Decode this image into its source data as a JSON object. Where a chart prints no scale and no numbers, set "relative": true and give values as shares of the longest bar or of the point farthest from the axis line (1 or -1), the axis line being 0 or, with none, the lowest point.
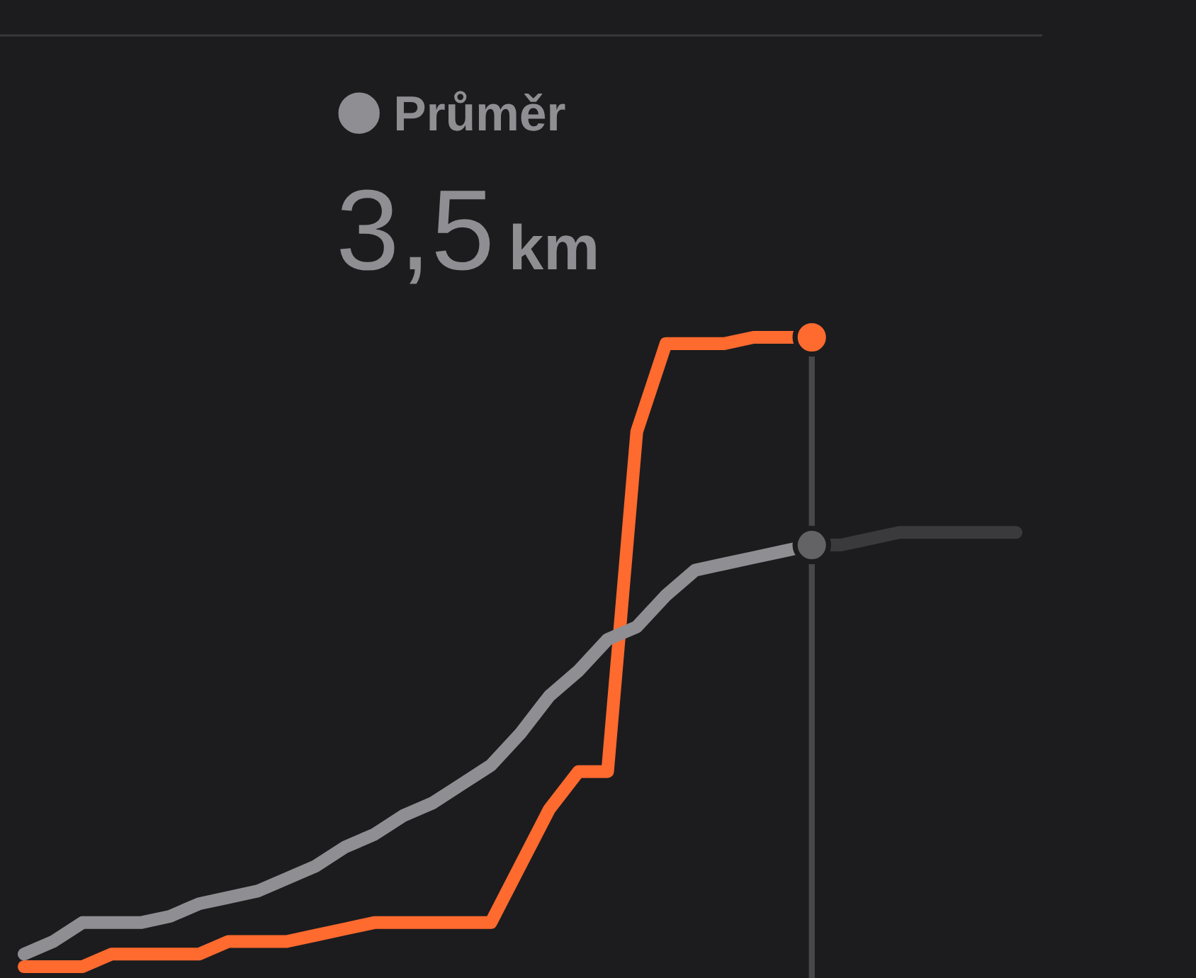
{
  "chart_data": {
    "type": "line",
    "relative": true,
    "categories": [
      null,
      null,
      null,
      null,
      null,
      null,
      null,
      null,
      null,
      null,
      null,
      null,
      null,
      null,
      null,
      null,
      null,
      null,
      null,
      null,
      null,
      null,
      null,
      null,
      null,
      null,
      null,
      null,
      null,
      null,
      null,
      null,
      null,
      null,
      null
    ],
    "series": [
      {
        "color": "#ff6a2f",
        "values": [
          0,
          0,
          0,
          0.02,
          0.02,
          0.02,
          0.02,
          0.04,
          0.04,
          0.04,
          0.05,
          0.06,
          0.07,
          0.07,
          0.07,
          0.07,
          0.07,
          0.16,
          0.25,
          0.31,
          0.31,
          0.85,
          0.99,
          0.99,
          0.99,
          1.0,
          1.0,
          1.0,
          null,
          null,
          null,
          null,
          null,
          null,
          null
        ]
      },
      {
        "name": "Průměr",
        "color": "#8e8e93",
        "values": [
          0.02,
          0.04,
          0.07,
          0.07,
          0.07,
          0.08,
          0.1,
          0.11,
          0.12,
          0.14,
          0.16,
          0.19,
          0.21,
          0.24,
          0.26,
          0.29,
          0.32,
          0.37,
          0.43,
          0.47,
          0.52,
          0.54,
          0.59,
          0.63,
          0.64,
          0.65,
          0.66,
          0.67,
          null,
          null,
          null,
          null,
          null,
          null,
          null
        ]
      },
      {
        "color": "#3a3a3c",
        "values": [
          null,
          null,
          null,
          null,
          null,
          null,
          null,
          null,
          null,
          null,
          null,
          null,
          null,
          null,
          null,
          null,
          null,
          null,
          null,
          null,
          null,
          null,
          null,
          null,
          null,
          null,
          null,
          0.67,
          0.67,
          0.68,
          0.69,
          0.69,
          0.69,
          0.69,
          0.69
        ]
      },
      {
        "marker": "circle",
        "color": "#ff6a2f",
        "values": [
          null,
          null,
          null,
          null,
          null,
          null,
          null,
          null,
          null,
          null,
          null,
          null,
          null,
          null,
          null,
          null,
          null,
          null,
          null,
          null,
          null,
          null,
          null,
          null,
          null,
          null,
          null,
          1.0,
          null,
          null,
          null,
          null,
          null,
          null,
          null
        ]
      },
      {
        "marker": "circle",
        "color": "#636366",
        "values": [
          null,
          null,
          null,
          null,
          null,
          null,
          null,
          null,
          null,
          null,
          null,
          null,
          null,
          null,
          null,
          null,
          null,
          null,
          null,
          null,
          null,
          null,
          null,
          null,
          null,
          null,
          null,
          0.67,
          null,
          null,
          null,
          null,
          null,
          null,
          null
        ]
      }
    ],
    "annotations": [
      "3,5 km"
    ],
    "legend": "top"
  }
}
